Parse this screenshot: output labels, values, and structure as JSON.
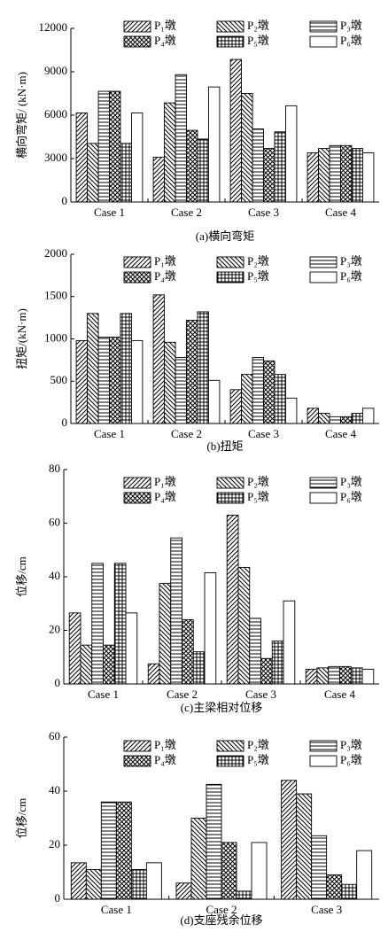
{
  "chart_data": [
    {
      "type": "bar",
      "caption": "(a)横向弯矩",
      "ylabel": "横向弯矩/ (kN·m)",
      "categories": [
        "Case 1",
        "Case 2",
        "Case 3",
        "Case 4"
      ],
      "ylim": [
        0,
        12000
      ],
      "yticks": [
        0,
        3000,
        6000,
        9000,
        12000
      ],
      "series": [
        {
          "name": "P₁墩",
          "color": "#000000",
          "hatch": "forward",
          "values": [
            6150,
            3100,
            9850,
            3400
          ]
        },
        {
          "name": "P₂墩",
          "color": "#000000",
          "hatch": "backward",
          "values": [
            4050,
            6850,
            7500,
            3700
          ]
        },
        {
          "name": "P₃墩",
          "color": "#000000",
          "hatch": "horizontal",
          "values": [
            7650,
            8800,
            5050,
            3900
          ]
        },
        {
          "name": "P₄墩",
          "color": "#000000",
          "hatch": "cross",
          "values": [
            7650,
            4950,
            3700,
            3900
          ]
        },
        {
          "name": "P₅墩",
          "color": "#000000",
          "hatch": "grid",
          "values": [
            4050,
            4350,
            4850,
            3700
          ]
        },
        {
          "name": "P₆墩",
          "color": "#000000",
          "hatch": "none",
          "values": [
            6150,
            7950,
            6650,
            3400
          ]
        }
      ]
    },
    {
      "type": "bar",
      "caption": "(b)扭矩",
      "ylabel": "扭矩/(kN·m)",
      "categories": [
        "Case 1",
        "Case 2",
        "Case 3",
        "Case 4"
      ],
      "ylim": [
        0,
        2000
      ],
      "yticks": [
        0,
        500,
        1000,
        1500,
        2000
      ],
      "series": [
        {
          "name": "P₁墩",
          "color": "#000000",
          "hatch": "forward",
          "values": [
            980,
            1520,
            400,
            180
          ]
        },
        {
          "name": "P₂墩",
          "color": "#000000",
          "hatch": "backward",
          "values": [
            1300,
            960,
            580,
            120
          ]
        },
        {
          "name": "P₃墩",
          "color": "#000000",
          "hatch": "horizontal",
          "values": [
            1020,
            780,
            780,
            80
          ]
        },
        {
          "name": "P₄墩",
          "color": "#000000",
          "hatch": "cross",
          "values": [
            1020,
            1220,
            740,
            80
          ]
        },
        {
          "name": "P₅墩",
          "color": "#000000",
          "hatch": "grid",
          "values": [
            1300,
            1320,
            580,
            120
          ]
        },
        {
          "name": "P₆墩",
          "color": "#000000",
          "hatch": "none",
          "values": [
            980,
            510,
            300,
            180
          ]
        }
      ]
    },
    {
      "type": "bar",
      "caption": "(c)主梁相对位移",
      "ylabel": "位移/cm",
      "categories": [
        "Case 1",
        "Case 2",
        "Case 3",
        "Case 4"
      ],
      "ylim": [
        0,
        80
      ],
      "yticks": [
        0,
        20,
        40,
        60,
        80
      ],
      "series": [
        {
          "name": "P₁墩",
          "color": "#000000",
          "hatch": "forward",
          "values": [
            26.5,
            7.5,
            63,
            5.5
          ]
        },
        {
          "name": "P₂墩",
          "color": "#000000",
          "hatch": "backward",
          "values": [
            14.5,
            37.5,
            43.5,
            6
          ]
        },
        {
          "name": "P₃墩",
          "color": "#000000",
          "hatch": "horizontal",
          "values": [
            45,
            54.5,
            24.5,
            6.5
          ]
        },
        {
          "name": "P₄墩",
          "color": "#000000",
          "hatch": "cross",
          "values": [
            14.5,
            24,
            9.5,
            6.5
          ]
        },
        {
          "name": "P₅墩",
          "color": "#000000",
          "hatch": "grid",
          "values": [
            45,
            12,
            16,
            6
          ]
        },
        {
          "name": "P₆墩",
          "color": "#000000",
          "hatch": "none",
          "values": [
            26.5,
            41.5,
            31,
            5.5
          ]
        }
      ]
    },
    {
      "type": "bar",
      "caption": "(d)支座残余位移",
      "ylabel": "位移/cm",
      "categories": [
        "Case 1",
        "Case 2",
        "Case 3"
      ],
      "ylim": [
        0,
        60
      ],
      "yticks": [
        0,
        20,
        40,
        60
      ],
      "series": [
        {
          "name": "P₁墩",
          "color": "#000000",
          "hatch": "forward",
          "values": [
            13.5,
            6,
            44
          ]
        },
        {
          "name": "P₂墩",
          "color": "#000000",
          "hatch": "backward",
          "values": [
            11,
            30,
            39
          ]
        },
        {
          "name": "P₃墩",
          "color": "#000000",
          "hatch": "horizontal",
          "values": [
            36,
            42.5,
            23.5
          ]
        },
        {
          "name": "P₄墩",
          "color": "#000000",
          "hatch": "cross",
          "values": [
            36,
            21,
            9
          ]
        },
        {
          "name": "P₅墩",
          "color": "#000000",
          "hatch": "grid",
          "values": [
            11,
            3,
            5.5
          ]
        },
        {
          "name": "P₆墩",
          "color": "#000000",
          "hatch": "none",
          "values": [
            13.5,
            21,
            18
          ]
        }
      ]
    }
  ]
}
